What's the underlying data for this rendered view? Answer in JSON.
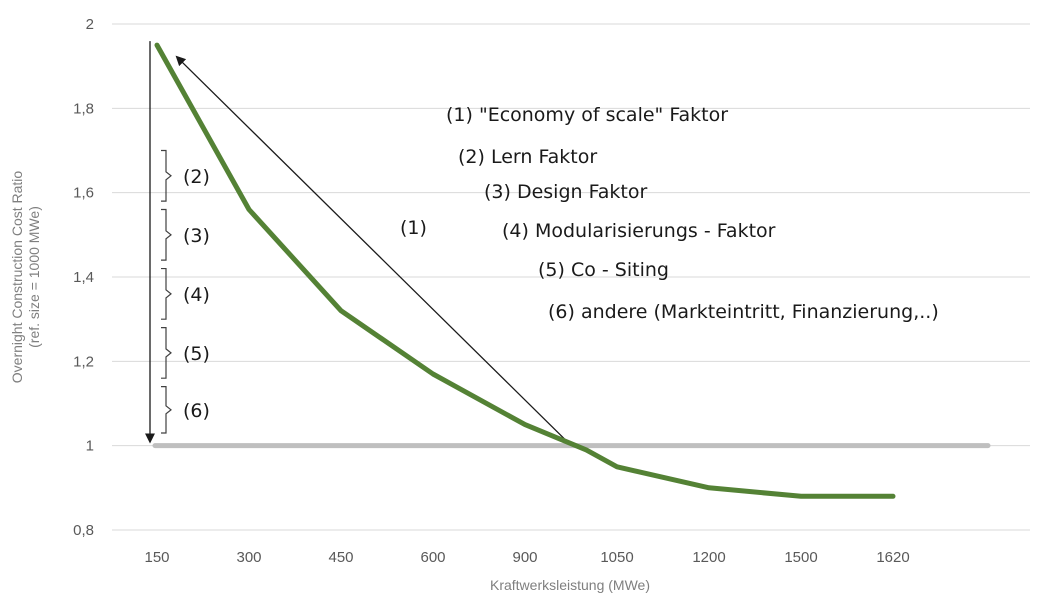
{
  "chart_data": {
    "type": "line",
    "xlabel": "Kraftwerksleistung (MWe)",
    "ylabel": "Overnight Construction Cost Ratio",
    "ylabel_sub": "(ref. size = 1000 MWe)",
    "categories": [
      "150",
      "300",
      "450",
      "600",
      "900",
      "1050",
      "1200",
      "1500",
      "1620"
    ],
    "yticks": [
      "0,8",
      "1",
      "1,2",
      "1,4",
      "1,6",
      "1,8",
      "2"
    ],
    "ylim": [
      0.8,
      2.0
    ],
    "grid": true,
    "series": [
      {
        "color": "#548235",
        "points": [
          {
            "x": 150,
            "y": 1.95
          },
          {
            "x": 300,
            "y": 1.56
          },
          {
            "x": 450,
            "y": 1.32
          },
          {
            "x": 600,
            "y": 1.17
          },
          {
            "x": 900,
            "y": 1.05
          },
          {
            "x": 1000,
            "y": 0.99
          },
          {
            "x": 1050,
            "y": 0.95
          },
          {
            "x": 1200,
            "y": 0.9
          },
          {
            "x": 1500,
            "y": 0.88
          },
          {
            "x": 1620,
            "y": 0.88
          }
        ]
      }
    ],
    "reference_line": {
      "y": 1.0,
      "color": "#bfbfbf"
    },
    "annotations": {
      "list": [
        "(1) \"Economy of scale\" Faktor",
        "(2) Lern Faktor",
        "(3) Design Faktor",
        "(4) Modularisierungs - Faktor",
        "(5) Co - Siting",
        "(6) andere (Markteintritt, Finanzierung,..)"
      ],
      "arrow_label": "(1)",
      "brackets": [
        {
          "label": "(2)",
          "y_top": 1.7,
          "y_bottom": 1.58
        },
        {
          "label": "(3)",
          "y_top": 1.56,
          "y_bottom": 1.44
        },
        {
          "label": "(4)",
          "y_top": 1.42,
          "y_bottom": 1.3
        },
        {
          "label": "(5)",
          "y_top": 1.28,
          "y_bottom": 1.16
        },
        {
          "label": "(6)",
          "y_top": 1.14,
          "y_bottom": 1.03
        }
      ]
    }
  }
}
